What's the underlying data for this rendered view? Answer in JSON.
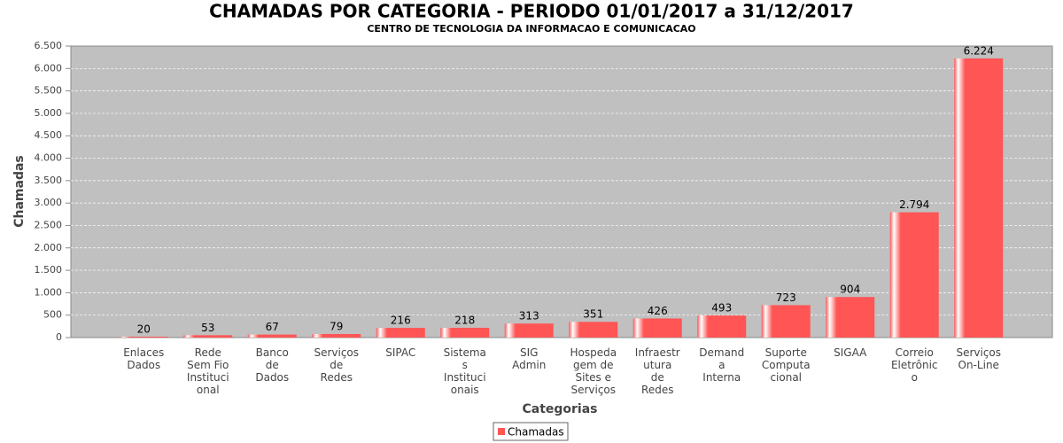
{
  "chart_data": {
    "type": "bar",
    "title": "CHAMADAS POR CATEGORIA - PERIODO 01/01/2017 a 31/12/2017",
    "subtitle": "CENTRO DE TECNOLOGIA DA INFORMACAO E COMUNICACAO",
    "x_label": "Categorias",
    "y_label": "Chamadas",
    "categories": [
      [
        "Enlaces",
        "Dados"
      ],
      [
        "Rede",
        "Sem Fio",
        "Instituci",
        "onal"
      ],
      [
        "Banco",
        "de",
        "Dados"
      ],
      [
        "Serviços",
        "de",
        "Redes"
      ],
      [
        "SIPAC"
      ],
      [
        "Sistema",
        "s",
        "Instituci",
        "onais"
      ],
      [
        "SIG",
        "Admin"
      ],
      [
        "Hospeda",
        "gem de",
        "Sites e",
        "Serviços"
      ],
      [
        "Infraestr",
        "utura",
        "de",
        "Redes"
      ],
      [
        "Demand",
        "a",
        "Interna"
      ],
      [
        "Suporte",
        "Computa",
        "cional"
      ],
      [
        "SIGAA"
      ],
      [
        "Correio",
        "Eletrônic",
        "o"
      ],
      [
        "Serviços",
        "On-Line"
      ]
    ],
    "series": [
      {
        "name": "Chamadas",
        "color": "#ff5555",
        "values": [
          20,
          53,
          67,
          79,
          216,
          218,
          313,
          351,
          426,
          493,
          723,
          904,
          2794,
          6224
        ],
        "value_labels": [
          "20",
          "53",
          "67",
          "79",
          "216",
          "218",
          "313",
          "351",
          "426",
          "493",
          "723",
          "904",
          "2.794",
          "6.224"
        ]
      }
    ],
    "ylim": [
      0,
      6500
    ],
    "yticks": [
      0,
      500,
      {
        "value": 1000,
        "label": "1.000"
      },
      {
        "value": 1500,
        "label": "1.500"
      },
      {
        "value": 2000,
        "label": "2.000"
      },
      {
        "value": 2500,
        "label": "2.500"
      },
      {
        "value": 3000,
        "label": "3.000"
      },
      {
        "value": 3500,
        "label": "3.500"
      },
      {
        "value": 4000,
        "label": "4.000"
      },
      {
        "value": 4500,
        "label": "4.500"
      },
      {
        "value": 5000,
        "label": "5.000"
      },
      {
        "value": 5500,
        "label": "5.500"
      },
      {
        "value": 6000,
        "label": "6.000"
      },
      {
        "value": 6500,
        "label": "6.500"
      }
    ],
    "grid": true,
    "legend": "bottom"
  }
}
